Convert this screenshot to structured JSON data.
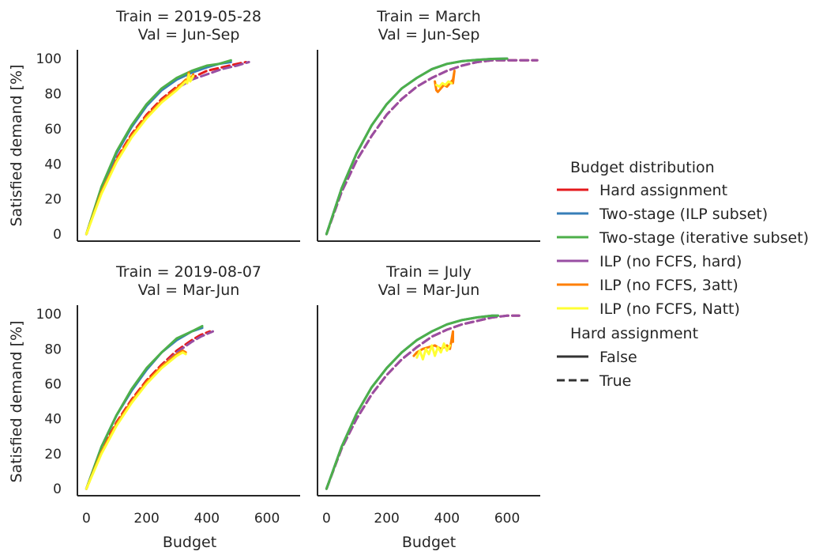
{
  "chart_data": {
    "type": "line",
    "layout": "2x2 facet grid, shared axes",
    "grid": false,
    "legend_placement": "right",
    "shared_xlabel": "Budget",
    "shared_ylabel": "Satisfied demand [%]",
    "xlim": [
      -30,
      710
    ],
    "ylim": [
      -4,
      105
    ],
    "xticks": [
      0,
      200,
      400,
      600
    ],
    "yticks": [
      0,
      20,
      40,
      60,
      80,
      100
    ],
    "legend": {
      "title": "Budget distribution",
      "entries": [
        {
          "label": "Hard assignment",
          "color": "#e41a1c"
        },
        {
          "label": "Two-stage (ILP subset)",
          "color": "#377eb8"
        },
        {
          "label": "Two-stage (iterative subset)",
          "color": "#4daf4a"
        },
        {
          "label": "ILP (no FCFS, hard)",
          "color": "#984ea3"
        },
        {
          "label": "ILP (no FCFS, 3att)",
          "color": "#ff7f00"
        },
        {
          "label": "ILP (no FCFS, Natt)",
          "color": "#ffff33"
        }
      ],
      "style_title": "Hard assignment",
      "style_entries": [
        {
          "label": "False",
          "dash": "solid"
        },
        {
          "label": "True",
          "dash": "dashed"
        }
      ]
    },
    "panels": [
      {
        "title_line1": "Train = 2019-05-28",
        "title_line2": "Val = Jun-Sep",
        "series": [
          {
            "name": "Hard assignment",
            "color": "#e41a1c",
            "dashed": true,
            "x": [
              0,
              50,
              100,
              150,
              200,
              250,
              300,
              350,
              400,
              450,
              500,
              530
            ],
            "y": [
              0,
              25,
              43,
              57,
              68,
              77,
              84,
              89,
              93,
              95,
              97,
              98
            ]
          },
          {
            "name": "ILP (no FCFS, hard)",
            "color": "#984ea3",
            "dashed": true,
            "x": [
              0,
              50,
              100,
              150,
              200,
              250,
              300,
              350,
              400,
              450,
              500,
              540
            ],
            "y": [
              0,
              24,
              42,
              56,
              67,
              76,
              83,
              88,
              91,
              94,
              96,
              98
            ]
          },
          {
            "name": "Two-stage (ILP subset)",
            "color": "#377eb8",
            "dashed": false,
            "x": [
              0,
              50,
              100,
              150,
              200,
              250,
              300,
              350,
              400,
              440,
              480
            ],
            "y": [
              0,
              26,
              46,
              61,
              73,
              82,
              88,
              92,
              95,
              97,
              98
            ]
          },
          {
            "name": "Two-stage (iterative subset)",
            "color": "#4daf4a",
            "dashed": false,
            "x": [
              0,
              50,
              100,
              150,
              200,
              250,
              300,
              350,
              400,
              440,
              480
            ],
            "y": [
              0,
              27,
              47,
              62,
              74,
              83,
              89,
              93,
              96,
              97,
              99
            ]
          },
          {
            "name": "ILP (no FCFS, 3att)",
            "color": "#ff7f00",
            "dashed": false,
            "x": [
              0,
              50,
              100,
              150,
              200,
              250,
              300,
              330,
              335,
              340,
              345,
              355
            ],
            "y": [
              0,
              24,
              42,
              56,
              67,
              76,
              83,
              88,
              87,
              92,
              88,
              91
            ]
          },
          {
            "name": "ILP (no FCFS, Natt)",
            "color": "#ffff33",
            "dashed": false,
            "x": [
              0,
              50,
              100,
              150,
              200,
              250,
              300,
              330,
              335,
              340,
              345,
              355
            ],
            "y": [
              0,
              23,
              41,
              55,
              66,
              75,
              82,
              87,
              86,
              91,
              87,
              90
            ]
          }
        ]
      },
      {
        "title_line1": "Train = March",
        "title_line2": "Val = Jun-Sep",
        "series": [
          {
            "name": "Hard assignment",
            "color": "#e41a1c",
            "dashed": true,
            "x": [
              0,
              50,
              100,
              150,
              200,
              250,
              300,
              350,
              400,
              450,
              500,
              550,
              600,
              650,
              700
            ],
            "y": [
              0,
              24,
              42,
              56,
              68,
              77,
              84,
              89,
              93,
              96,
              98,
              99,
              99,
              99,
              99
            ]
          },
          {
            "name": "ILP (no FCFS, hard)",
            "color": "#984ea3",
            "dashed": true,
            "x": [
              0,
              50,
              100,
              150,
              200,
              250,
              300,
              350,
              400,
              450,
              500,
              550,
              600,
              650,
              700
            ],
            "y": [
              0,
              24,
              42,
              56,
              68,
              77,
              84,
              89,
              93,
              96,
              98,
              99,
              99,
              99,
              99
            ]
          },
          {
            "name": "ILP (no FCFS, 3att)",
            "color": "#ff7f00",
            "dashed": false,
            "x": [
              360,
              365,
              370,
              380,
              390,
              400,
              410,
              420,
              425,
              420
            ],
            "y": [
              87,
              82,
              81,
              83,
              85,
              84,
              86,
              88,
              93,
              86
            ]
          },
          {
            "name": "ILP (no FCFS, Natt)",
            "color": "#ffff33",
            "dashed": false,
            "x": [
              365,
              375,
              385,
              395,
              405,
              415
            ],
            "y": [
              85,
              84,
              86,
              85,
              87,
              86
            ]
          },
          {
            "name": "Two-stage (ILP subset)",
            "color": "#377eb8",
            "dashed": false,
            "x": [
              0,
              50,
              100,
              150,
              200,
              250,
              300,
              350,
              400,
              450,
              500,
              550,
              600
            ],
            "y": [
              0,
              26,
              46,
              62,
              74,
              83,
              89,
              94,
              97,
              98.5,
              99.3,
              99.8,
              100
            ]
          },
          {
            "name": "Two-stage (iterative subset)",
            "color": "#4daf4a",
            "dashed": false,
            "x": [
              0,
              50,
              100,
              150,
              200,
              250,
              300,
              350,
              400,
              450,
              500,
              550,
              600
            ],
            "y": [
              0,
              26,
              46,
              62,
              74,
              83,
              89,
              94,
              97,
              98.5,
              99.3,
              99.8,
              100
            ]
          }
        ]
      },
      {
        "title_line1": "Train = 2019-08-07",
        "title_line2": "Val = Mar-Jun",
        "series": [
          {
            "name": "Hard assignment",
            "color": "#e41a1c",
            "dashed": true,
            "x": [
              0,
              50,
              100,
              150,
              200,
              250,
              300,
              350,
              380,
              410
            ],
            "y": [
              0,
              22,
              38,
              51,
              62,
              71,
              79,
              85,
              88,
              90
            ]
          },
          {
            "name": "ILP (no FCFS, hard)",
            "color": "#984ea3",
            "dashed": true,
            "x": [
              0,
              50,
              100,
              150,
              200,
              250,
              300,
              350,
              380,
              420
            ],
            "y": [
              0,
              21,
              37,
              50,
              61,
              70,
              78,
              84,
              87,
              90
            ]
          },
          {
            "name": "Two-stage (ILP subset)",
            "color": "#377eb8",
            "dashed": false,
            "x": [
              0,
              50,
              100,
              150,
              200,
              250,
              300,
              350,
              385
            ],
            "y": [
              0,
              24,
              42,
              56,
              68,
              78,
              85,
              90,
              92
            ]
          },
          {
            "name": "Two-stage (iterative subset)",
            "color": "#4daf4a",
            "dashed": false,
            "x": [
              0,
              50,
              100,
              150,
              200,
              250,
              300,
              350,
              385
            ],
            "y": [
              0,
              24,
              42,
              57,
              69,
              78,
              86,
              90,
              93
            ]
          },
          {
            "name": "ILP (no FCFS, 3att)",
            "color": "#ff7f00",
            "dashed": false,
            "x": [
              0,
              50,
              100,
              150,
              200,
              250,
              300,
              320,
              330
            ],
            "y": [
              0,
              21,
              37,
              50,
              61,
              70,
              77,
              79,
              78
            ]
          },
          {
            "name": "ILP (no FCFS, Natt)",
            "color": "#ffff33",
            "dashed": false,
            "x": [
              0,
              50,
              100,
              150,
              200,
              250,
              300,
              320,
              330
            ],
            "y": [
              0,
              20,
              36,
              49,
              60,
              69,
              76,
              78,
              77
            ]
          }
        ]
      },
      {
        "title_line1": "Train = July",
        "title_line2": "Val = Mar-Jun",
        "series": [
          {
            "name": "Hard assignment",
            "color": "#e41a1c",
            "dashed": true,
            "x": [
              0,
              50,
              100,
              150,
              200,
              250,
              300,
              350,
              400,
              450,
              500,
              550,
              600,
              640
            ],
            "y": [
              0,
              23,
              40,
              54,
              65,
              74,
              81,
              87,
              91,
              94,
              96,
              98,
              99,
              99
            ]
          },
          {
            "name": "ILP (no FCFS, hard)",
            "color": "#984ea3",
            "dashed": true,
            "x": [
              0,
              50,
              100,
              150,
              200,
              250,
              300,
              350,
              400,
              450,
              500,
              550,
              600,
              640
            ],
            "y": [
              0,
              23,
              40,
              54,
              65,
              74,
              81,
              87,
              91,
              94,
              96,
              98,
              99,
              99
            ]
          },
          {
            "name": "ILP (no FCFS, 3att)",
            "color": "#ff7f00",
            "dashed": false,
            "x": [
              290,
              300,
              320,
              340,
              360,
              380,
              400,
              410,
              420,
              420
            ],
            "y": [
              76,
              78,
              80,
              81,
              82,
              80,
              82,
              80,
              90,
              84
            ]
          },
          {
            "name": "ILP (no FCFS, Natt)",
            "color": "#ffff33",
            "dashed": false,
            "x": [
              300,
              310,
              320,
              330,
              340,
              350,
              360,
              370,
              380,
              390,
              400,
              410
            ],
            "y": [
              75,
              79,
              74,
              80,
              77,
              82,
              76,
              81,
              78,
              83,
              79,
              82
            ]
          },
          {
            "name": "Two-stage (ILP subset)",
            "color": "#377eb8",
            "dashed": false,
            "x": [
              0,
              50,
              100,
              150,
              200,
              250,
              300,
              350,
              400,
              450,
              500,
              550,
              570
            ],
            "y": [
              0,
              24,
              43,
              58,
              69,
              78,
              85,
              90,
              94,
              96.5,
              98,
              99,
              99
            ]
          },
          {
            "name": "Two-stage (iterative subset)",
            "color": "#4daf4a",
            "dashed": false,
            "x": [
              0,
              50,
              100,
              150,
              200,
              250,
              300,
              350,
              400,
              450,
              500,
              550,
              570
            ],
            "y": [
              0,
              24,
              43,
              58,
              69,
              78,
              85,
              90,
              94,
              96.5,
              98,
              99,
              99
            ]
          }
        ]
      }
    ]
  }
}
